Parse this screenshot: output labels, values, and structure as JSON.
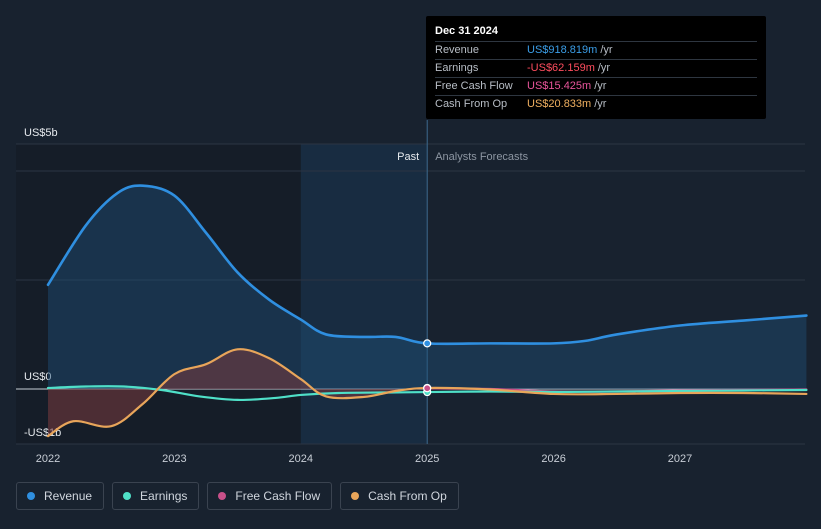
{
  "tooltip": {
    "date": "Dec 31 2024",
    "rows": [
      {
        "label": "Revenue",
        "value": "US$918.819m",
        "unit": "/yr",
        "color": "#3b9ee8"
      },
      {
        "label": "Earnings",
        "value": "-US$62.159m",
        "unit": "/yr",
        "color": "#ff4d5e"
      },
      {
        "label": "Free Cash Flow",
        "value": "US$15.425m",
        "unit": "/yr",
        "color": "#e8559a"
      },
      {
        "label": "Cash From Op",
        "value": "US$20.833m",
        "unit": "/yr",
        "color": "#f0b060"
      }
    ]
  },
  "legend": [
    {
      "label": "Revenue",
      "color": "#2f8fe0"
    },
    {
      "label": "Earnings",
      "color": "#4fe0c8"
    },
    {
      "label": "Free Cash Flow",
      "color": "#c8508a"
    },
    {
      "label": "Cash From Op",
      "color": "#e8a55a"
    }
  ],
  "chart_data": {
    "type": "line",
    "y_tick_labels": [
      "US$5b",
      "US$0",
      "-US$1b"
    ],
    "ylim": [
      -1,
      5
    ],
    "x_ticks": [
      2022,
      2023,
      2024,
      2025,
      2026,
      2027
    ],
    "xlim": [
      2022,
      2028
    ],
    "past_label": "Past",
    "forecast_label": "Analysts Forecasts",
    "divider_x": 2025,
    "highlight_start": 2024,
    "grid": true,
    "series": [
      {
        "name": "Revenue",
        "color": "#2f8fe0",
        "points": [
          [
            2022.0,
            2.1
          ],
          [
            2022.3,
            3.3
          ],
          [
            2022.55,
            3.95
          ],
          [
            2022.75,
            4.1
          ],
          [
            2023.0,
            3.9
          ],
          [
            2023.25,
            3.15
          ],
          [
            2023.5,
            2.35
          ],
          [
            2023.75,
            1.8
          ],
          [
            2024.0,
            1.4
          ],
          [
            2024.2,
            1.1
          ],
          [
            2024.5,
            1.05
          ],
          [
            2024.75,
            1.05
          ],
          [
            2025.0,
            0.92
          ],
          [
            2025.5,
            0.92
          ],
          [
            2026.0,
            0.92
          ],
          [
            2026.25,
            0.97
          ],
          [
            2026.5,
            1.1
          ],
          [
            2027.0,
            1.28
          ],
          [
            2027.5,
            1.38
          ],
          [
            2028.0,
            1.48
          ]
        ]
      },
      {
        "name": "Earnings",
        "color": "#4fe0c8",
        "points": [
          [
            2022.0,
            0.02
          ],
          [
            2022.3,
            0.05
          ],
          [
            2022.6,
            0.05
          ],
          [
            2022.9,
            -0.02
          ],
          [
            2023.2,
            -0.15
          ],
          [
            2023.5,
            -0.22
          ],
          [
            2023.8,
            -0.18
          ],
          [
            2024.0,
            -0.12
          ],
          [
            2024.3,
            -0.08
          ],
          [
            2024.7,
            -0.07
          ],
          [
            2025.0,
            -0.062
          ],
          [
            2025.5,
            -0.05
          ],
          [
            2026.0,
            -0.06
          ],
          [
            2026.5,
            -0.05
          ],
          [
            2027.0,
            -0.04
          ],
          [
            2027.5,
            -0.03
          ],
          [
            2028.0,
            -0.02
          ]
        ]
      },
      {
        "name": "Free Cash Flow",
        "color": "#c8508a",
        "points": [
          [
            2025.0,
            0.015
          ],
          [
            2025.5,
            0.0
          ],
          [
            2026.0,
            -0.05
          ],
          [
            2026.5,
            -0.05
          ],
          [
            2027.0,
            -0.03
          ],
          [
            2027.5,
            -0.02
          ],
          [
            2028.0,
            -0.01
          ]
        ]
      },
      {
        "name": "Cash From Op",
        "color": "#e8a55a",
        "points": [
          [
            2022.0,
            -0.95
          ],
          [
            2022.2,
            -0.65
          ],
          [
            2022.5,
            -0.75
          ],
          [
            2022.75,
            -0.3
          ],
          [
            2023.0,
            0.3
          ],
          [
            2023.25,
            0.5
          ],
          [
            2023.5,
            0.8
          ],
          [
            2023.75,
            0.62
          ],
          [
            2024.0,
            0.2
          ],
          [
            2024.2,
            -0.15
          ],
          [
            2024.5,
            -0.16
          ],
          [
            2024.75,
            -0.04
          ],
          [
            2025.0,
            0.021
          ],
          [
            2025.5,
            -0.01
          ],
          [
            2026.0,
            -0.1
          ],
          [
            2026.5,
            -0.1
          ],
          [
            2027.0,
            -0.08
          ],
          [
            2027.5,
            -0.08
          ],
          [
            2028.0,
            -0.1
          ]
        ]
      }
    ]
  }
}
